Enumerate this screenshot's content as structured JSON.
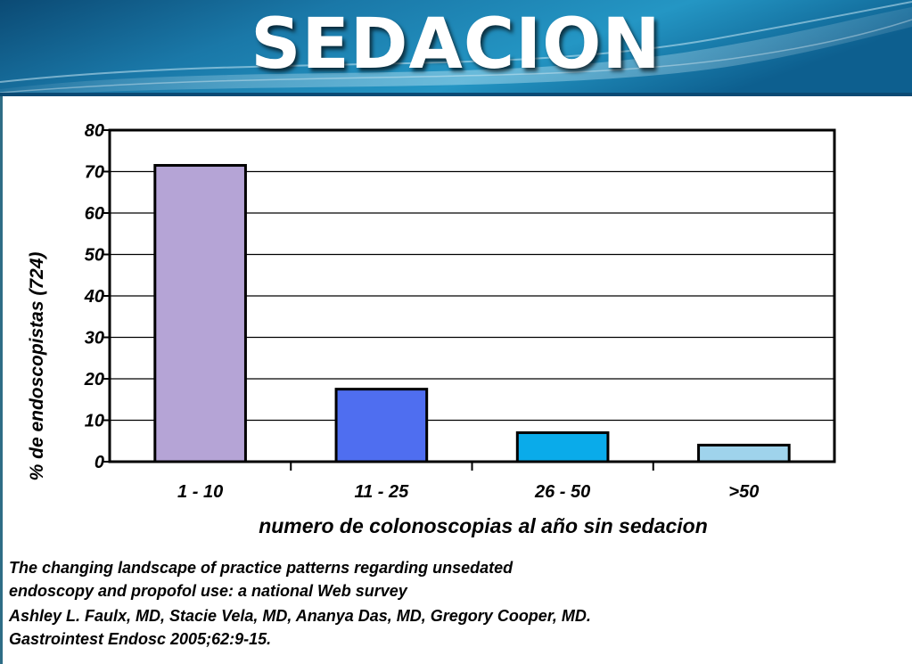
{
  "slide": {
    "title": "SEDACION",
    "colors": {
      "header_dark": "#0c4d78",
      "header_light": "#2a9fc8",
      "text": "#000000"
    }
  },
  "chart_data": {
    "type": "bar",
    "title": "",
    "xlabel": "numero de colonoscopias al año sin sedacion",
    "ylabel": "% de endoscopistas (724)",
    "categories": [
      "1 - 10",
      "11 - 25",
      "26 - 50",
      ">50"
    ],
    "values": [
      71.5,
      17.5,
      7,
      4
    ],
    "colors": [
      "#b5a4d6",
      "#4f6ef0",
      "#0aabea",
      "#9fd3ec"
    ],
    "ylim": [
      0,
      80
    ],
    "yticks": [
      0,
      10,
      20,
      30,
      40,
      50,
      60,
      70,
      80
    ],
    "ytick_labels": [
      "0",
      "10",
      "20",
      "30",
      "40",
      "50",
      "60",
      "70",
      "80"
    ],
    "grid": true,
    "legend": "none"
  },
  "caption": {
    "lines": [
      "The changing landscape of practice patterns regarding unsedated",
      "endoscopy and propofol use: a national Web survey",
      "Ashley L. Faulx, MD, Stacie Vela, MD, Ananya Das, MD, Gregory Cooper, MD.",
      "Gastrointest Endosc 2005;62:9-15."
    ]
  }
}
